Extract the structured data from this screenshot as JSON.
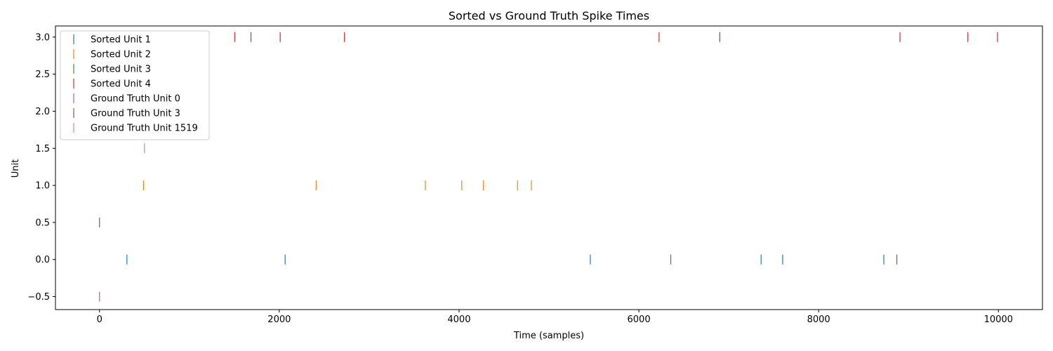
{
  "chart_data": {
    "type": "scatter",
    "title": "Sorted vs Ground Truth Spike Times",
    "xlabel": "Time (samples)",
    "ylabel": "Unit",
    "xlim": [
      -490,
      10490
    ],
    "ylim": [
      -0.675,
      3.15
    ],
    "xticks": [
      0,
      2000,
      4000,
      6000,
      8000,
      10000
    ],
    "xtick_labels": [
      "0",
      "2000",
      "4000",
      "6000",
      "8000",
      "10000"
    ],
    "yticks": [
      -0.5,
      0.0,
      0.5,
      1.0,
      1.5,
      2.0,
      2.5,
      3.0
    ],
    "ytick_labels": [
      "−0.5",
      "0.0",
      "0.5",
      "1.0",
      "1.5",
      "2.0",
      "2.5",
      "3.0"
    ],
    "grid": false,
    "legend_position": "top-left",
    "marker": "|",
    "series": [
      {
        "name": "Sorted Unit 1",
        "color": "#1f77b4",
        "y": 0.0,
        "x": [
          305,
          2065,
          5460,
          6355,
          7360,
          7600,
          8725,
          8870
        ]
      },
      {
        "name": "Sorted Unit 2",
        "color": "#ff7f0e",
        "y": 1.0,
        "x": [
          490,
          2410,
          3625,
          4030,
          4270,
          4650,
          4805
        ]
      },
      {
        "name": "Sorted Unit 3",
        "color": "#2ca02c",
        "y": 2.0,
        "x": []
      },
      {
        "name": "Sorted Unit 4",
        "color": "#d62728",
        "y": 3.0,
        "x": [
          1505,
          1685,
          2010,
          2725,
          6225,
          6900,
          8905,
          9660,
          9990
        ]
      },
      {
        "name": "Ground Truth Unit 0",
        "color": "#9467bd",
        "y": -0.5,
        "x": [
          0
        ]
      },
      {
        "name": "Ground Truth Unit 3",
        "color": "#8c564b",
        "y": 0.5,
        "x": [
          0
        ]
      },
      {
        "name": "Ground Truth Unit 1519",
        "color": "#e377c2",
        "y": 1.5,
        "x": [
          500
        ]
      }
    ]
  }
}
